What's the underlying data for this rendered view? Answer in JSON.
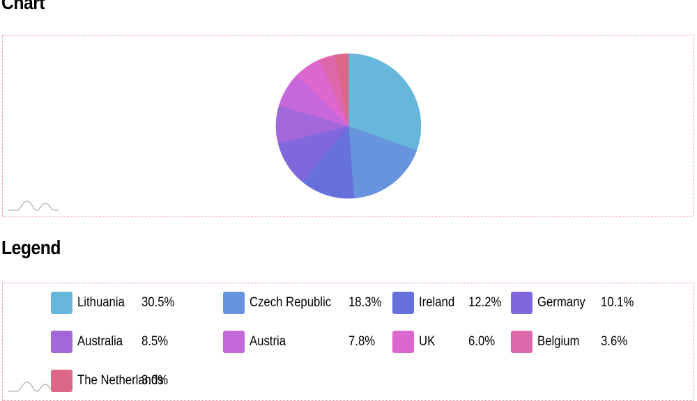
{
  "headings": {
    "chart": "Chart",
    "legend": "Legend"
  },
  "chart_data": {
    "type": "pie",
    "slices": [
      {
        "label": "Lithuania",
        "value": 30.5,
        "display": "30.5%",
        "color": "#67b7dc"
      },
      {
        "label": "Czech Republic",
        "value": 18.3,
        "display": "18.3%",
        "color": "#6794dc"
      },
      {
        "label": "Ireland",
        "value": 12.2,
        "display": "12.2%",
        "color": "#6771dc"
      },
      {
        "label": "Germany",
        "value": 10.1,
        "display": "10.1%",
        "color": "#8067dc"
      },
      {
        "label": "Australia",
        "value": 8.5,
        "display": "8.5%",
        "color": "#a367dc"
      },
      {
        "label": "Austria",
        "value": 7.8,
        "display": "7.8%",
        "color": "#c767dc"
      },
      {
        "label": "UK",
        "value": 6.0,
        "display": "6.0%",
        "color": "#dc67ce"
      },
      {
        "label": "Belgium",
        "value": 3.6,
        "display": "3.6%",
        "color": "#dc67ab"
      },
      {
        "label": "The Netherlands",
        "value": 3.0,
        "display": "3.0%",
        "color": "#dc6788"
      }
    ]
  },
  "logo": {
    "icon": "amcharts-wave-icon"
  }
}
